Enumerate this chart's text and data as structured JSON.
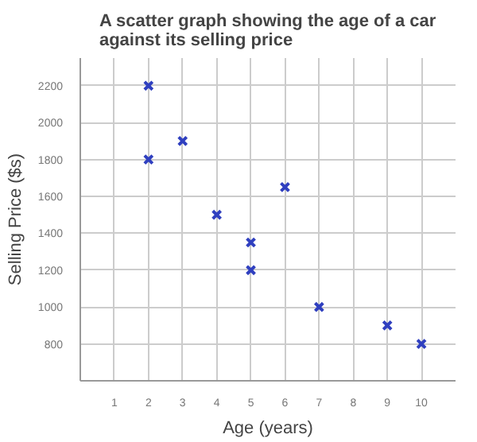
{
  "chart_data": {
    "type": "scatter",
    "title": "A scatter graph showing the age of a car\nagainst its selling price",
    "xlabel": "Age (years)",
    "ylabel": "Selling Price ($s)",
    "x": [
      2,
      2,
      3,
      4,
      5,
      5,
      6,
      7,
      9,
      10
    ],
    "series": [
      {
        "color": "#2f3fbf",
        "values": [
          2200,
          1800,
          1900,
          1500,
          1350,
          1200,
          1650,
          1000,
          900,
          800
        ]
      }
    ],
    "xlim": [
      0,
      11
    ],
    "xticks": [
      1,
      2,
      3,
      4,
      5,
      6,
      7,
      8,
      9,
      10
    ],
    "ylim": [
      600,
      2350
    ],
    "yticks": [
      800,
      1000,
      1200,
      1400,
      1600,
      1800,
      2000,
      2200
    ],
    "grid": true,
    "marker": "cross"
  }
}
